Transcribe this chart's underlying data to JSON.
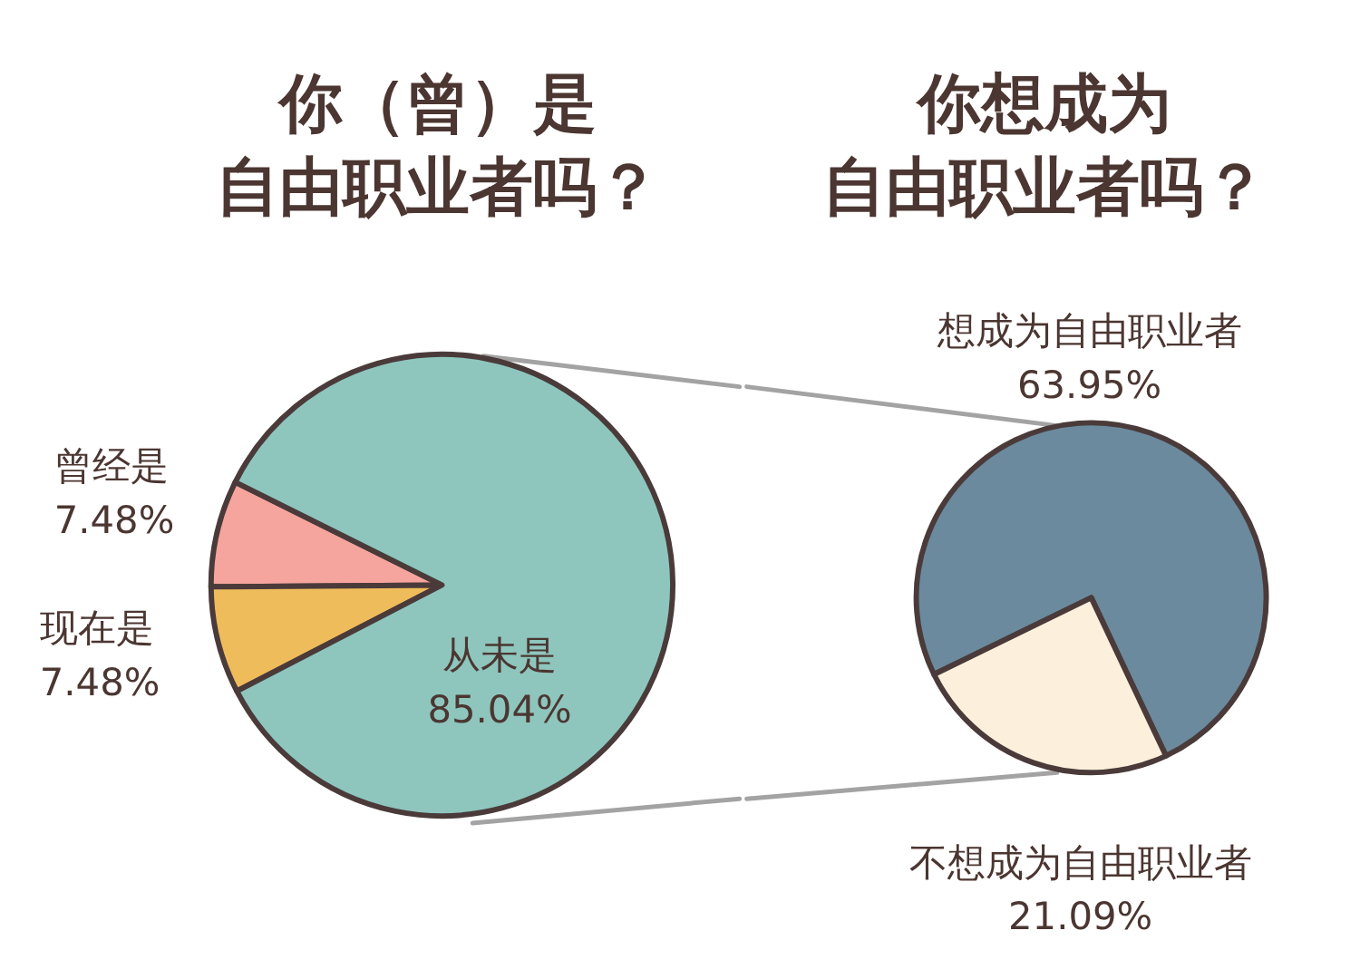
{
  "chart_data": [
    {
      "type": "pie",
      "title": "你（曾）是自由职业者吗？",
      "categories": [
        "曾经是",
        "现在是",
        "从未是"
      ],
      "values": [
        7.48,
        7.48,
        85.04
      ],
      "value_labels": [
        "7.48%",
        "7.48%",
        "85.04%"
      ],
      "colors": [
        "#f5a59d",
        "#efbc5c",
        "#8ec6be"
      ]
    },
    {
      "type": "pie",
      "title": "你想成为自由职业者吗？",
      "categories": [
        "想成为自由职业者",
        "不想成为自由职业者"
      ],
      "values": [
        63.95,
        21.09
      ],
      "value_labels": [
        "63.95%",
        "21.09%"
      ],
      "colors": [
        "#6b8a9e",
        "#fcf0dc"
      ]
    }
  ]
}
